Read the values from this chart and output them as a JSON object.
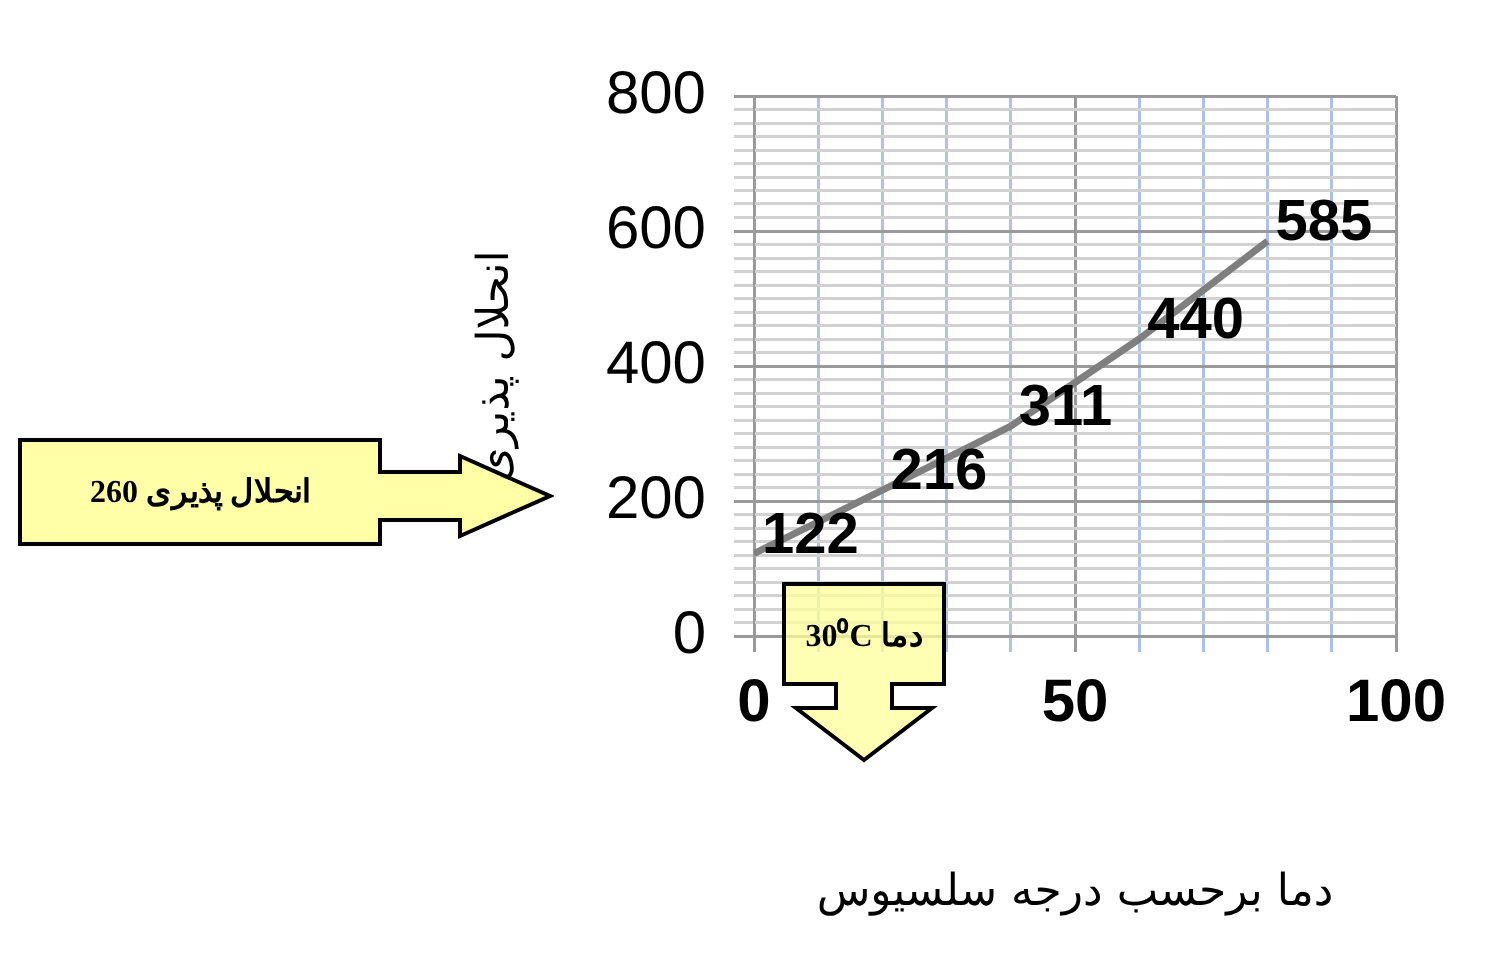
{
  "chart_data": {
    "type": "line",
    "xlabel": "دما برحسب درجه سلسیوس",
    "ylabel": "انحلال پذیری",
    "x": [
      0,
      20,
      40,
      60,
      80
    ],
    "series": [
      {
        "color": "#7f7f7f",
        "values": [
          122,
          216,
          311,
          440,
          585
        ]
      }
    ],
    "xlim": [
      0,
      100
    ],
    "xticks": [
      0,
      {
        "value": 10,
        "label": null
      },
      {
        "value": 20,
        "label": null
      },
      {
        "value": 30,
        "label": null
      },
      {
        "value": 40,
        "label": null
      },
      50,
      {
        "value": 60,
        "label": null
      },
      {
        "value": 70,
        "label": null
      },
      {
        "value": 80,
        "label": null
      },
      {
        "value": 90,
        "label": null
      },
      100
    ],
    "ylim": [
      0,
      800
    ],
    "yticks": [
      0,
      {
        "value": 20,
        "label": null
      },
      {
        "value": 40,
        "label": null
      },
      {
        "value": 60,
        "label": null
      },
      {
        "value": 80,
        "label": null
      },
      {
        "value": 100,
        "label": null
      },
      {
        "value": 120,
        "label": null
      },
      {
        "value": 140,
        "label": null
      },
      {
        "value": 160,
        "label": null
      },
      {
        "value": 180,
        "label": null
      },
      200,
      {
        "value": 220,
        "label": null
      },
      {
        "value": 240,
        "label": null
      },
      {
        "value": 260,
        "label": null
      },
      {
        "value": 280,
        "label": null
      },
      {
        "value": 300,
        "label": null
      },
      {
        "value": 320,
        "label": null
      },
      {
        "value": 340,
        "label": null
      },
      {
        "value": 360,
        "label": null
      },
      {
        "value": 380,
        "label": null
      },
      400,
      {
        "value": 420,
        "label": null
      },
      {
        "value": 440,
        "label": null
      },
      {
        "value": 460,
        "label": null
      },
      {
        "value": 480,
        "label": null
      },
      {
        "value": 500,
        "label": null
      },
      {
        "value": 520,
        "label": null
      },
      {
        "value": 540,
        "label": null
      },
      {
        "value": 560,
        "label": null
      },
      {
        "value": 580,
        "label": null
      },
      600,
      {
        "value": 620,
        "label": null
      },
      {
        "value": 640,
        "label": null
      },
      {
        "value": 660,
        "label": null
      },
      {
        "value": 680,
        "label": null
      },
      {
        "value": 700,
        "label": null
      },
      {
        "value": 720,
        "label": null
      },
      {
        "value": 740,
        "label": null
      },
      {
        "value": 760,
        "label": null
      },
      {
        "value": 780,
        "label": null
      },
      800
    ],
    "grid": true,
    "legend": false,
    "marker": "none",
    "line_style": "solid",
    "data_labels": true,
    "annotations": [
      "انحلال پذیری 260",
      "دما 30⁰C"
    ]
  }
}
